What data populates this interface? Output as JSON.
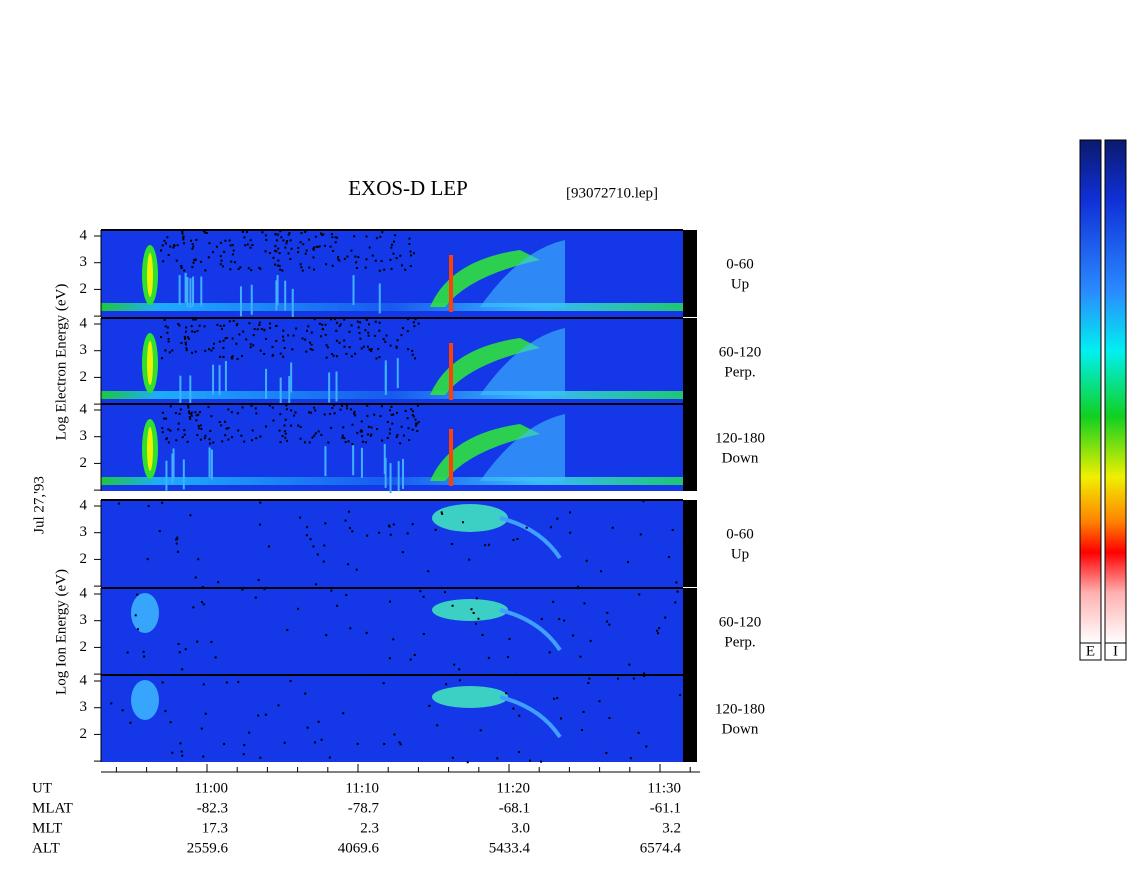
{
  "header": {
    "title": "EXOS-D LEP",
    "file": "[93072710.lep]"
  },
  "date": "Jul 27,'93",
  "energy_ticks": [
    4,
    3,
    2
  ],
  "electron": {
    "axis_label": "Log Electron Energy (eV)",
    "panels": [
      {
        "range": "0-60",
        "direction": "Up"
      },
      {
        "range": "60-120",
        "direction": "Perp."
      },
      {
        "range": "120-180",
        "direction": "Down"
      }
    ]
  },
  "ion": {
    "axis_label": "Log Ion Energy (eV)",
    "panels": [
      {
        "range": "0-60",
        "direction": "Up"
      },
      {
        "range": "60-120",
        "direction": "Perp."
      },
      {
        "range": "120-180",
        "direction": "Down"
      }
    ]
  },
  "orbit": {
    "rows": [
      {
        "label": "UT",
        "values": [
          "11:00",
          "11:10",
          "11:20",
          "11:30"
        ]
      },
      {
        "label": "MLAT",
        "values": [
          "-82.3",
          "-78.7",
          "-68.1",
          "-61.1"
        ]
      },
      {
        "label": "MLT",
        "values": [
          "17.3",
          "2.3",
          "3.0",
          "3.2"
        ]
      },
      {
        "label": "ALT",
        "values": [
          "2559.6",
          "4069.6",
          "5433.4",
          "6574.4"
        ]
      }
    ]
  },
  "colorbar": {
    "labels": [
      "E",
      "I"
    ]
  }
}
